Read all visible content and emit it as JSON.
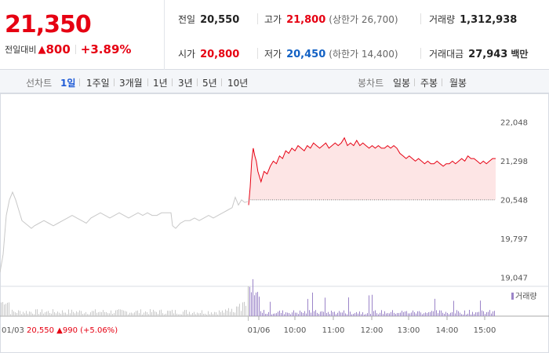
{
  "quote": {
    "price": "21,350",
    "change_label": "전일대비",
    "change_arrow": "▲",
    "change_amount": "800",
    "change_percent": "+3.89%"
  },
  "stats": {
    "prev_label": "전일",
    "prev_value": "20,550",
    "high_label": "고가",
    "high_value": "21,800",
    "upper_limit": "(상한가 26,700)",
    "volume_label": "거래량",
    "volume_value": "1,312,938",
    "open_label": "시가",
    "open_value": "20,800",
    "low_label": "저가",
    "low_value": "20,450",
    "lower_limit": "(하한가 14,400)",
    "amount_label": "거래대금",
    "amount_value": "27,943",
    "amount_unit": "백만"
  },
  "tabs": {
    "line_title": "선차트",
    "periods": [
      "1일",
      "1주일",
      "3개월",
      "1년",
      "3년",
      "5년",
      "10년"
    ],
    "active_period": "1일",
    "candle_title": "봉차트",
    "candle_types": [
      "일봉",
      "주봉",
      "월봉"
    ]
  },
  "colors": {
    "up": "#e60012",
    "down": "#1261c4",
    "prev_day_line": "#c8c8c8",
    "volume": "#9b84c8",
    "fill": "#fde5e5"
  },
  "chart_data": {
    "type": "line",
    "y_ticks": [
      "22,048",
      "21,298",
      "20,548",
      "19,797",
      "19,047"
    ],
    "y_tick_values": [
      22048,
      21298,
      20548,
      19797,
      19047
    ],
    "ylim": [
      19047,
      22048
    ],
    "reference_price": 20550,
    "x_labels": [
      "01/03",
      "01/06",
      "10:00",
      "11:00",
      "12:00",
      "13:00",
      "14:00",
      "15:00"
    ],
    "prev_day_summary": {
      "date": "01/03",
      "close": "20,550",
      "arrow": "▲",
      "change": "990",
      "percent": "(+5.06%)"
    },
    "volume_legend": "거래량",
    "series": [
      {
        "day": "01/03",
        "points": [
          [
            0,
            19150
          ],
          [
            2,
            19500
          ],
          [
            4,
            20250
          ],
          [
            6,
            20550
          ],
          [
            8,
            20700
          ],
          [
            10,
            20550
          ],
          [
            12,
            20350
          ],
          [
            14,
            20150
          ],
          [
            16,
            20100
          ],
          [
            18,
            20050
          ],
          [
            20,
            20000
          ],
          [
            22,
            20050
          ],
          [
            25,
            20100
          ],
          [
            28,
            20150
          ],
          [
            31,
            20100
          ],
          [
            34,
            20050
          ],
          [
            37,
            20100
          ],
          [
            40,
            20150
          ],
          [
            43,
            20200
          ],
          [
            46,
            20250
          ],
          [
            49,
            20200
          ],
          [
            52,
            20150
          ],
          [
            55,
            20100
          ],
          [
            58,
            20200
          ],
          [
            61,
            20250
          ],
          [
            64,
            20300
          ],
          [
            67,
            20250
          ],
          [
            70,
            20200
          ],
          [
            73,
            20250
          ],
          [
            76,
            20300
          ],
          [
            79,
            20250
          ],
          [
            82,
            20200
          ],
          [
            85,
            20250
          ],
          [
            88,
            20300
          ],
          [
            91,
            20250
          ],
          [
            94,
            20300
          ],
          [
            97,
            20250
          ],
          [
            100,
            20250
          ],
          [
            103,
            20300
          ],
          [
            106,
            20300
          ],
          [
            109,
            20300
          ],
          [
            110,
            20050
          ],
          [
            112,
            20000
          ],
          [
            115,
            20100
          ],
          [
            118,
            20150
          ],
          [
            121,
            20150
          ],
          [
            124,
            20200
          ],
          [
            127,
            20150
          ],
          [
            130,
            20200
          ],
          [
            133,
            20250
          ],
          [
            136,
            20200
          ],
          [
            139,
            20250
          ],
          [
            142,
            20300
          ],
          [
            145,
            20350
          ],
          [
            148,
            20400
          ],
          [
            150,
            20600
          ],
          [
            152,
            20450
          ],
          [
            154,
            20550
          ],
          [
            156,
            20500
          ],
          [
            158,
            20520
          ]
        ]
      },
      {
        "day": "01/06",
        "points": [
          [
            0,
            20450
          ],
          [
            1,
            20800
          ],
          [
            2,
            21300
          ],
          [
            3,
            21550
          ],
          [
            4,
            21400
          ],
          [
            5,
            21300
          ],
          [
            6,
            21100
          ],
          [
            7,
            21000
          ],
          [
            8,
            20900
          ],
          [
            9,
            21000
          ],
          [
            10,
            21100
          ],
          [
            12,
            21050
          ],
          [
            14,
            21200
          ],
          [
            16,
            21300
          ],
          [
            18,
            21250
          ],
          [
            20,
            21400
          ],
          [
            22,
            21350
          ],
          [
            24,
            21500
          ],
          [
            26,
            21450
          ],
          [
            28,
            21550
          ],
          [
            30,
            21500
          ],
          [
            32,
            21600
          ],
          [
            34,
            21550
          ],
          [
            36,
            21500
          ],
          [
            38,
            21600
          ],
          [
            40,
            21550
          ],
          [
            42,
            21650
          ],
          [
            44,
            21600
          ],
          [
            46,
            21550
          ],
          [
            48,
            21600
          ],
          [
            50,
            21650
          ],
          [
            52,
            21550
          ],
          [
            54,
            21600
          ],
          [
            56,
            21650
          ],
          [
            58,
            21600
          ],
          [
            60,
            21650
          ],
          [
            62,
            21750
          ],
          [
            64,
            21600
          ],
          [
            66,
            21650
          ],
          [
            68,
            21600
          ],
          [
            70,
            21700
          ],
          [
            72,
            21600
          ],
          [
            74,
            21650
          ],
          [
            76,
            21600
          ],
          [
            78,
            21550
          ],
          [
            80,
            21600
          ],
          [
            82,
            21550
          ],
          [
            84,
            21600
          ],
          [
            86,
            21550
          ],
          [
            88,
            21550
          ],
          [
            90,
            21600
          ],
          [
            92,
            21550
          ],
          [
            94,
            21600
          ],
          [
            96,
            21550
          ],
          [
            98,
            21450
          ],
          [
            100,
            21400
          ],
          [
            102,
            21350
          ],
          [
            104,
            21400
          ],
          [
            106,
            21350
          ],
          [
            108,
            21300
          ],
          [
            110,
            21350
          ],
          [
            112,
            21300
          ],
          [
            114,
            21250
          ],
          [
            116,
            21300
          ],
          [
            118,
            21250
          ],
          [
            120,
            21250
          ],
          [
            122,
            21300
          ],
          [
            124,
            21250
          ],
          [
            126,
            21200
          ],
          [
            128,
            21250
          ],
          [
            130,
            21250
          ],
          [
            132,
            21300
          ],
          [
            134,
            21250
          ],
          [
            136,
            21300
          ],
          [
            138,
            21350
          ],
          [
            140,
            21300
          ],
          [
            142,
            21400
          ],
          [
            144,
            21350
          ],
          [
            146,
            21350
          ],
          [
            148,
            21300
          ],
          [
            150,
            21250
          ],
          [
            152,
            21300
          ],
          [
            154,
            21250
          ],
          [
            156,
            21300
          ],
          [
            158,
            21350
          ],
          [
            160,
            21350
          ]
        ]
      }
    ]
  }
}
